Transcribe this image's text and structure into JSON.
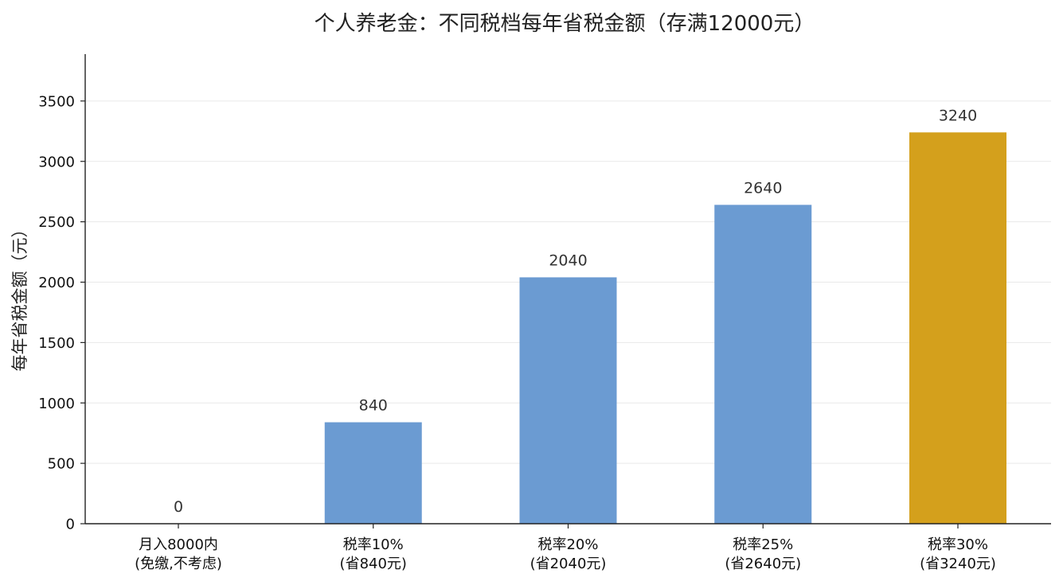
{
  "chart_data": {
    "type": "bar",
    "title": "个人养老金：不同税档每年省税金额（存满12000元）",
    "xlabel": "",
    "ylabel": "每年省税金额（元）",
    "categories": [
      [
        "月入8000内",
        "(免缴,不考虑)"
      ],
      [
        "税率10%",
        "(省840元)"
      ],
      [
        "税率20%",
        "(省2040元)"
      ],
      [
        "税率25%",
        "(省2640元)"
      ],
      [
        "税率30%",
        "(省3240元)"
      ]
    ],
    "values": [
      0,
      840,
      2040,
      2640,
      3240
    ],
    "value_labels": [
      "0",
      "840",
      "2040",
      "2640",
      "3240"
    ],
    "bar_colors": [
      "#6b9bd2",
      "#6b9bd2",
      "#6b9bd2",
      "#6b9bd2",
      "#d4a01c"
    ],
    "ylim": [
      0,
      3888
    ],
    "yticks": [
      0,
      500,
      1000,
      1500,
      2000,
      2500,
      3000,
      3500
    ],
    "grid": true,
    "legend": "none"
  }
}
